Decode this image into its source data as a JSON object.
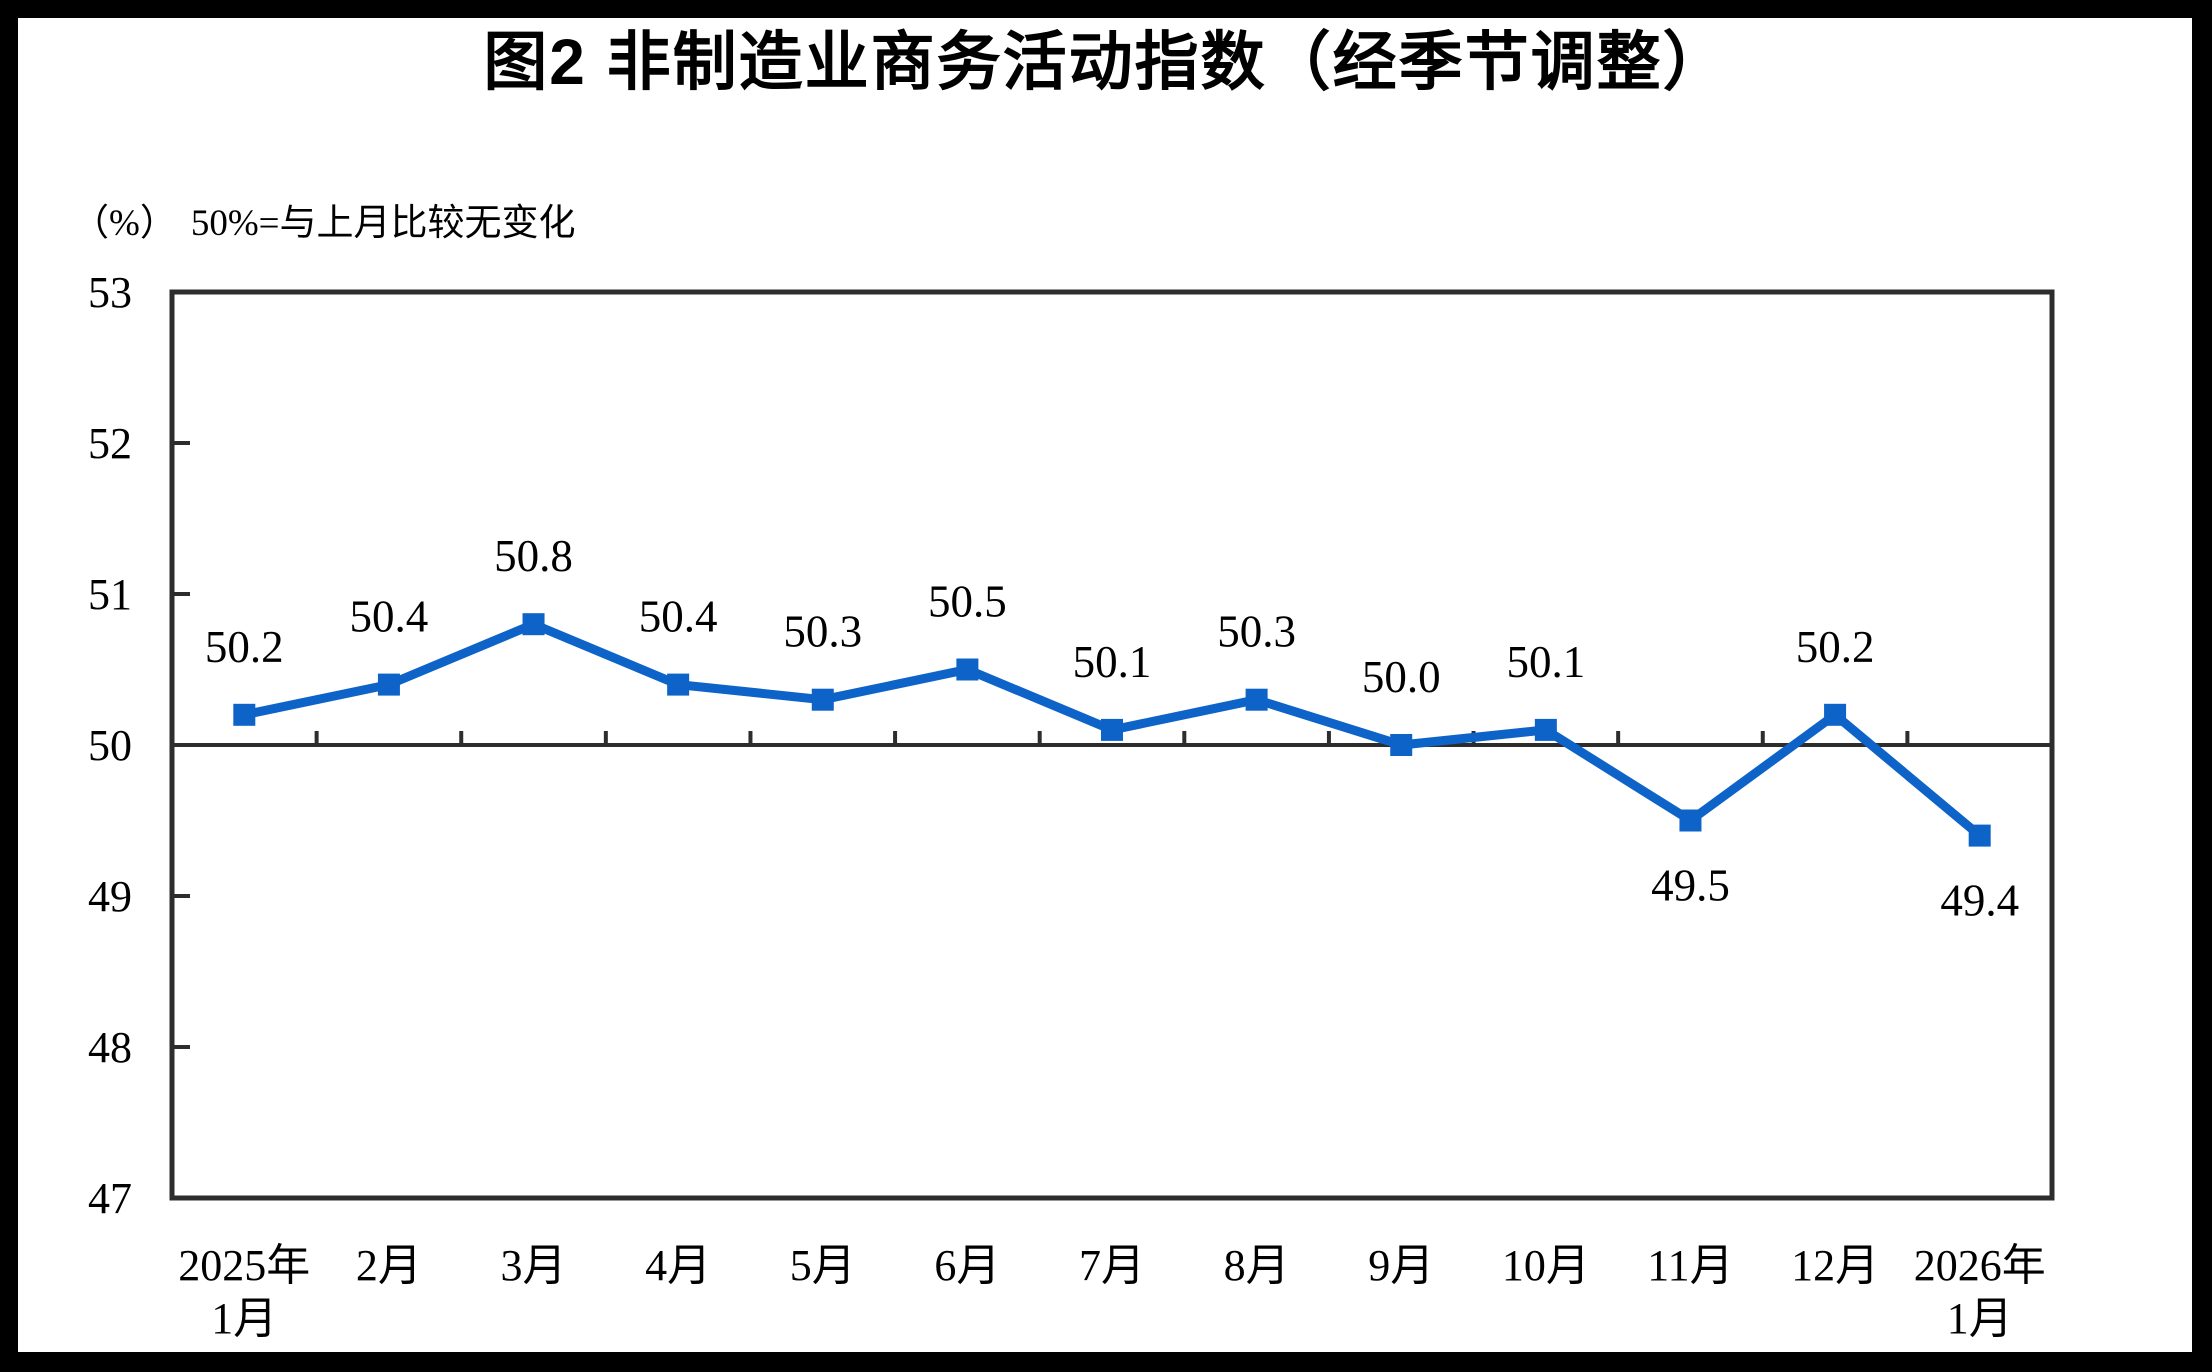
{
  "figure": {
    "title": "图2 非制造业商务活动指数（经季节调整）",
    "unit_label": "（%）",
    "reference_note": "50%=与上月比较无变化"
  },
  "chart_data": {
    "type": "line",
    "title": "图2 非制造业商务活动指数（经季节调整）",
    "subtitle": "（%）50%=与上月比较无变化",
    "categories": [
      "2025年\n1月",
      "2月",
      "3月",
      "4月",
      "5月",
      "6月",
      "7月",
      "8月",
      "9月",
      "10月",
      "11月",
      "12月",
      "2026年\n1月"
    ],
    "values": [
      50.2,
      50.4,
      50.8,
      50.4,
      50.3,
      50.5,
      50.1,
      50.3,
      50.0,
      50.1,
      49.5,
      50.2,
      49.4
    ],
    "data_label_positions": [
      "above",
      "above",
      "above",
      "above",
      "above",
      "above",
      "above",
      "above",
      "above",
      "above",
      "below",
      "above",
      "below"
    ],
    "ylim": [
      47,
      53
    ],
    "yticks": [
      47,
      48,
      49,
      50,
      51,
      52,
      53
    ],
    "reference_line_value": 50,
    "grid": "off",
    "legend": "none",
    "marker": "square",
    "colors": {
      "series": "#0d63c7",
      "axis": "#2d2d2d",
      "text": "#000000",
      "background": "#ffffff",
      "outer_border": "#000000"
    }
  }
}
